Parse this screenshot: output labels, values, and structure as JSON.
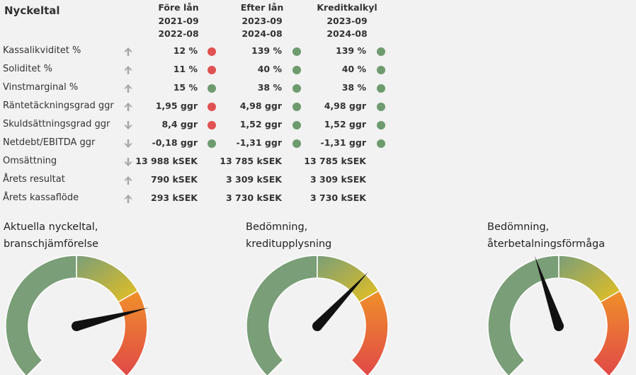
{
  "table": {
    "title": "Nyckeltal",
    "columns": [
      {
        "name": "Före lån",
        "from": "2021-09",
        "to": "2022-08"
      },
      {
        "name": "Efter lån",
        "from": "2023-09",
        "to": "2024-08"
      },
      {
        "name": "Kreditkalkyl",
        "from": "2023-09",
        "to": "2024-08"
      }
    ],
    "rows": [
      {
        "label": "Kassalikviditet %",
        "trend": "up",
        "values": [
          "12 %",
          "139 %",
          "139 %"
        ],
        "status": [
          "red",
          "green",
          "green"
        ]
      },
      {
        "label": "Soliditet %",
        "trend": "up",
        "values": [
          "11 %",
          "40 %",
          "40 %"
        ],
        "status": [
          "red",
          "green",
          "green"
        ]
      },
      {
        "label": "Vinstmarginal %",
        "trend": "up",
        "values": [
          "15 %",
          "38 %",
          "38 %"
        ],
        "status": [
          "green",
          "green",
          "green"
        ]
      },
      {
        "label": "Räntetäckningsgrad ggr",
        "trend": "up",
        "values": [
          "1,95 ggr",
          "4,98 ggr",
          "4,98 ggr"
        ],
        "status": [
          "red",
          "green",
          "green"
        ]
      },
      {
        "label": "Skuldsättningsgrad ggr",
        "trend": "down",
        "values": [
          "8,4 ggr",
          "1,52 ggr",
          "1,52 ggr"
        ],
        "status": [
          "red",
          "green",
          "green"
        ]
      },
      {
        "label": "Netdebt/EBITDA ggr",
        "trend": "down",
        "values": [
          "-0,18 ggr",
          "-1,31 ggr",
          "-1,31 ggr"
        ],
        "status": [
          "green",
          "green",
          "green"
        ]
      },
      {
        "label": "Omsättning",
        "trend": "down",
        "values": [
          "13 988 kSEK",
          "13 785 kSEK",
          "13 785 kSEK"
        ],
        "status": [
          null,
          null,
          null
        ]
      },
      {
        "label": "Årets resultat",
        "trend": "up",
        "values": [
          "790 kSEK",
          "3 309 kSEK",
          "3 309 kSEK"
        ],
        "status": [
          null,
          null,
          null
        ]
      },
      {
        "label": "Årets kassaflöde",
        "trend": "up",
        "values": [
          "293 kSEK",
          "3 730 kSEK",
          "3 730 kSEK"
        ],
        "status": [
          null,
          null,
          null
        ]
      }
    ]
  },
  "colors": {
    "red": "#e05252",
    "green": "#6e9b6e",
    "arrow": "#a8a8a8",
    "gauge_green": "#7a9e78",
    "gauge_yellow": "#e6c020",
    "gauge_orange": "#f0902a",
    "gauge_red": "#e04848",
    "needle": "#111111"
  },
  "icons": {
    "up": "arrow-up-icon",
    "down": "arrow-down-icon"
  },
  "gauges": [
    {
      "title_line1": "Aktuella nyckeltal,",
      "title_line2": "branschjämförelse",
      "value": 0.78
    },
    {
      "title_line1": "Bedömning,",
      "title_line2": "kreditupplysning",
      "value": 0.66
    },
    {
      "title_line1": "Bedömning,",
      "title_line2": "återbetalningsförmåga",
      "value": 0.43
    }
  ]
}
